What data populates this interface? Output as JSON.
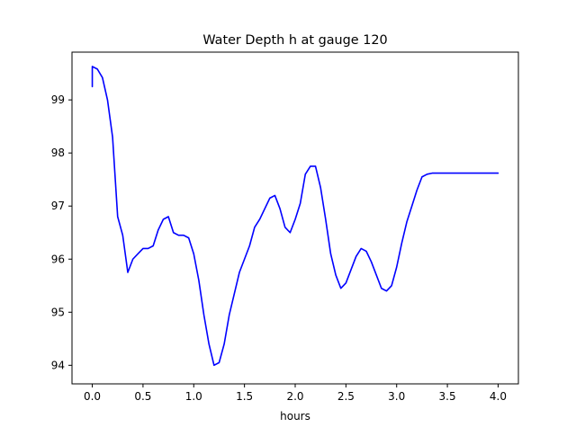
{
  "chart_data": {
    "type": "line",
    "title": "Water Depth h at gauge 120",
    "xlabel": "hours",
    "ylabel": "",
    "xlim": [
      -0.2,
      4.2
    ],
    "ylim": [
      93.65,
      99.9
    ],
    "x_ticks": [
      0.0,
      0.5,
      1.0,
      1.5,
      2.0,
      2.5,
      3.0,
      3.5,
      4.0
    ],
    "x_tick_labels": [
      "0.0",
      "0.5",
      "1.0",
      "1.5",
      "2.0",
      "2.5",
      "3.0",
      "3.5",
      "4.0"
    ],
    "y_ticks": [
      94,
      95,
      96,
      97,
      98,
      99
    ],
    "y_tick_labels": [
      "94",
      "95",
      "96",
      "97",
      "98",
      "99"
    ],
    "grid": false,
    "legend": "none",
    "series": [
      {
        "color": "#0000ff",
        "x": [
          0.0,
          0.0,
          0.05,
          0.1,
          0.15,
          0.2,
          0.25,
          0.3,
          0.35,
          0.4,
          0.45,
          0.5,
          0.55,
          0.6,
          0.65,
          0.7,
          0.75,
          0.8,
          0.85,
          0.9,
          0.95,
          1.0,
          1.05,
          1.1,
          1.15,
          1.2,
          1.25,
          1.3,
          1.35,
          1.4,
          1.45,
          1.5,
          1.55,
          1.6,
          1.65,
          1.7,
          1.75,
          1.8,
          1.85,
          1.9,
          1.95,
          2.0,
          2.05,
          2.1,
          2.15,
          2.2,
          2.25,
          2.3,
          2.35,
          2.4,
          2.45,
          2.5,
          2.55,
          2.6,
          2.65,
          2.7,
          2.75,
          2.8,
          2.85,
          2.9,
          2.95,
          3.0,
          3.05,
          3.1,
          3.15,
          3.2,
          3.25,
          3.3,
          3.35,
          3.4,
          3.45,
          3.5,
          3.55,
          3.6,
          3.65,
          3.7,
          3.75,
          3.8,
          3.85,
          3.9,
          3.95,
          4.0
        ],
        "y": [
          99.25,
          99.63,
          99.58,
          99.42,
          99.0,
          98.3,
          96.8,
          96.45,
          95.75,
          96.0,
          96.1,
          96.2,
          96.2,
          96.25,
          96.55,
          96.75,
          96.8,
          96.5,
          96.45,
          96.45,
          96.4,
          96.1,
          95.6,
          94.95,
          94.4,
          94.0,
          94.05,
          94.4,
          94.95,
          95.35,
          95.75,
          96.0,
          96.25,
          96.6,
          96.75,
          96.95,
          97.15,
          97.2,
          96.95,
          96.6,
          96.5,
          96.75,
          97.05,
          97.6,
          97.75,
          97.75,
          97.35,
          96.75,
          96.1,
          95.7,
          95.45,
          95.55,
          95.8,
          96.05,
          96.2,
          96.15,
          95.95,
          95.7,
          95.45,
          95.4,
          95.5,
          95.85,
          96.3,
          96.7,
          97.0,
          97.3,
          97.55,
          97.6,
          97.62,
          97.62,
          97.62,
          97.62,
          97.62,
          97.62,
          97.62,
          97.62,
          97.62,
          97.62,
          97.62,
          97.62,
          97.62,
          97.62
        ]
      }
    ]
  }
}
